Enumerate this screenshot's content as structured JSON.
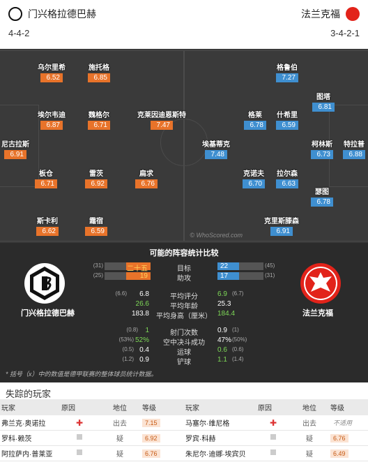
{
  "home": {
    "name": "门兴格拉德巴赫",
    "formation": "4-4-2",
    "color": "#e8732a"
  },
  "away": {
    "name": "法兰克福",
    "formation": "3-4-2-1",
    "color": "#3f8fd0"
  },
  "watermark": "© WhoScored.com",
  "players_home": [
    {
      "name": "乌尔里希",
      "rating": "6.52"
    },
    {
      "name": "施托格",
      "rating": "6.85"
    },
    {
      "name": "埃尔韦迪",
      "rating": "6.87"
    },
    {
      "name": "魏格尔",
      "rating": "6.71"
    },
    {
      "name": "克莱因迪恩斯特",
      "rating": "7.47"
    },
    {
      "name": "尼古拉斯",
      "rating": "6.91"
    },
    {
      "name": "板仓",
      "rating": "6.71"
    },
    {
      "name": "雷茨",
      "rating": "6.92"
    },
    {
      "name": "扁求",
      "rating": "6.76"
    },
    {
      "name": "斯卡利",
      "rating": "6.62"
    },
    {
      "name": "霜宿",
      "rating": "6.59"
    }
  ],
  "players_away": [
    {
      "name": "格鲁伯",
      "rating": "7.27"
    },
    {
      "name": "图塔",
      "rating": "6.81"
    },
    {
      "name": "格莱",
      "rating": "6.78"
    },
    {
      "name": "什希里",
      "rating": "6.59"
    },
    {
      "name": "埃基蒂克",
      "rating": "7.48"
    },
    {
      "name": "柯林斯",
      "rating": "6.73"
    },
    {
      "name": "特拉普",
      "rating": "6.88"
    },
    {
      "name": "克诺夫",
      "rating": "6.70"
    },
    {
      "name": "拉尔森",
      "rating": "6.63"
    },
    {
      "name": "瑟图",
      "rating": "6.78"
    },
    {
      "name": "克里斯滕森",
      "rating": "6.91"
    }
  ],
  "comparison": {
    "title": "可能的阵容统计比较",
    "home_label": "门兴格拉德巴赫",
    "away_label": "法兰克福",
    "rows": [
      {
        "label": "目标",
        "home": "二十五",
        "home_prev": "(31)",
        "away": "22",
        "away_prev": "(45)",
        "home_frac": 0.53,
        "away_frac": 0.47
      },
      {
        "label": "助攻",
        "home": "19",
        "home_prev": "(25)",
        "away": "17",
        "away_prev": "(31)",
        "home_frac": 0.53,
        "away_frac": 0.47
      },
      {
        "label": "平均评分",
        "home": "6.8",
        "home_prev": "(6.6)",
        "away": "6.9",
        "away_prev": "(6.7)"
      },
      {
        "label": "平均年龄",
        "home": "26.6",
        "home_prev": "",
        "away": "25.3",
        "away_prev": ""
      },
      {
        "label": "平均身高（厘米）",
        "home": "183.8",
        "home_prev": "",
        "away": "184.4",
        "away_prev": ""
      },
      {
        "label": "射门次数",
        "home": "1",
        "home_prev": "(0.8)",
        "away": "0.9",
        "away_prev": "(1)"
      },
      {
        "label": "空中决斗成功",
        "home": "52%",
        "home_prev": "(53%)",
        "away": "47%",
        "away_prev": "(50%)"
      },
      {
        "label": "运球",
        "home": "0.4",
        "home_prev": "(0.5)",
        "away": "0.6",
        "away_prev": "(0.6)"
      },
      {
        "label": "铲球",
        "home": "0.9",
        "home_prev": "(1.2)",
        "away": "1.1",
        "away_prev": "(1.4)"
      }
    ],
    "footnote": "* 括号（x）中的数值是德甲联赛的整体球员统计数据。"
  },
  "missing": {
    "title": "失踪的玩家",
    "headers": [
      "玩家",
      "原因",
      "地位",
      "等级",
      "玩家",
      "原因",
      "地位",
      "等级"
    ],
    "rows": [
      {
        "h_player": "弗兰克·奥诺拉",
        "h_status": "出去",
        "h_rating": "7.15",
        "a_player": "马塞尔·维尼格",
        "a_status": "出去",
        "a_rating": "不适用"
      },
      {
        "h_player": "罗科·赖茨",
        "h_status": "疑",
        "h_rating": "6.92",
        "a_player": "罗宾·科赫",
        "a_status": "疑",
        "a_rating": "6.76"
      },
      {
        "h_player": "阿拉萨内·普莱亚",
        "h_status": "疑",
        "h_rating": "6.76",
        "a_player": "朱尼尔·迪娜·埃宾贝",
        "a_status": "疑",
        "a_rating": "6.49"
      }
    ]
  }
}
